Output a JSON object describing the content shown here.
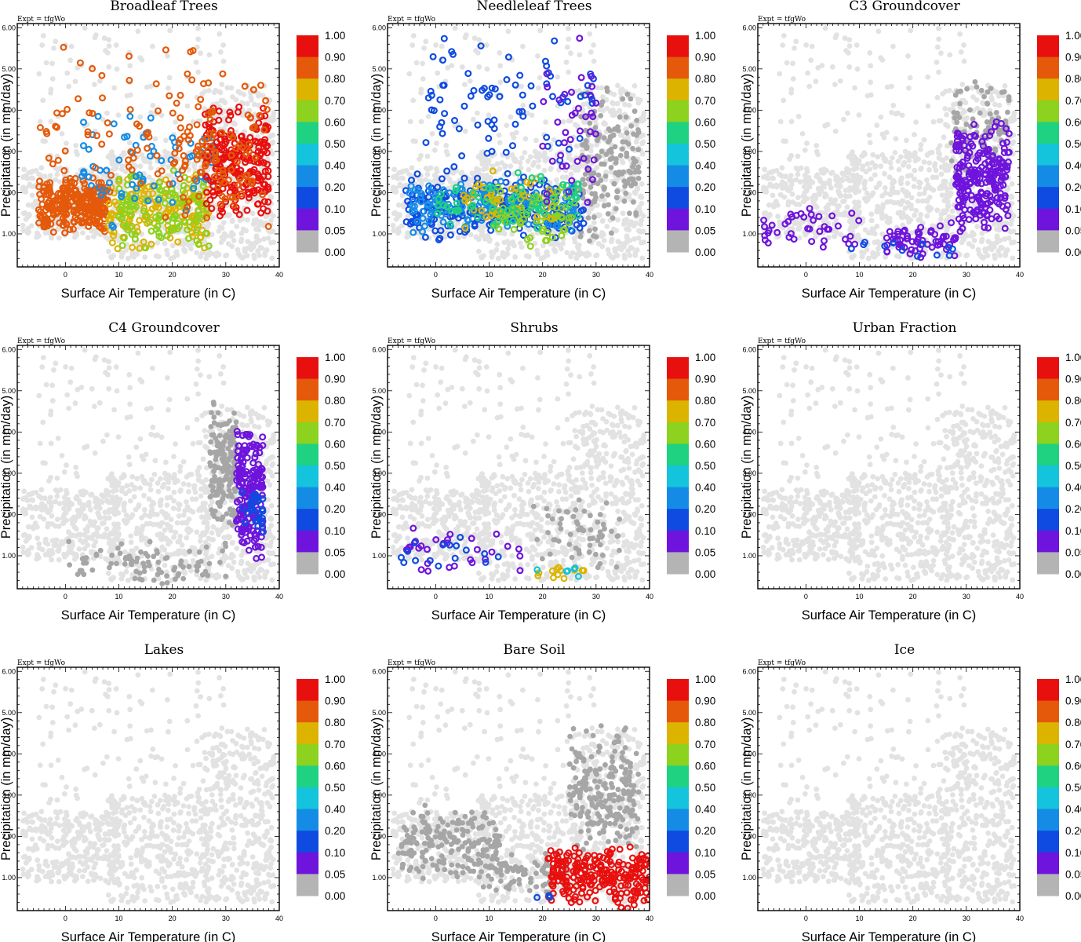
{
  "figure": {
    "expt_label": "Expt = tfgWo",
    "colorbar_labels": [
      "1.00",
      "0.90",
      "0.80",
      "0.70",
      "0.60",
      "0.50",
      "0.40",
      "0.20",
      "0.10",
      "0.05",
      "0.00"
    ],
    "colorbar_colors": [
      "#e8100e",
      "#e45a0a",
      "#dcb400",
      "#8cd21e",
      "#1ed282",
      "#14c3dc",
      "#148ce6",
      "#0f4be1",
      "#6e14dc",
      "#b4b4b4"
    ],
    "background_point_color": "#e2e2e2",
    "zero_point_color": "#a6a6a6"
  },
  "chart_data": [
    {
      "type": "scatter",
      "title": "Broadleaf Trees",
      "xlabel": "Surface Air Temperature (in C)",
      "ylabel": "Precipitation (in mm/day)",
      "xlim": [
        -9,
        40
      ],
      "ylim": [
        0.2,
        6.1
      ],
      "xticks": [
        0,
        10,
        20,
        30,
        40
      ],
      "yticks": [
        1.0,
        2.0,
        3.0,
        4.0,
        5.0,
        6.0
      ],
      "ytick_labels": [
        "1.00",
        "2.00",
        "3.00",
        "4.00",
        "5.00",
        "6.00"
      ],
      "clusters": [
        {
          "x": [
            -5,
            8
          ],
          "y": [
            1.0,
            2.4
          ],
          "color": "#e45a0a",
          "n": 260
        },
        {
          "x": [
            8,
            27
          ],
          "y": [
            0.5,
            2.5
          ],
          "color": "#dcb400",
          "n": 150
        },
        {
          "x": [
            10,
            27
          ],
          "y": [
            0.5,
            2.6
          ],
          "color": "#8cd21e",
          "n": 110
        },
        {
          "x": [
            3,
            28
          ],
          "y": [
            0.8,
            4.5
          ],
          "color": "#148ce6",
          "n": 70
        },
        {
          "x": [
            26,
            38
          ],
          "y": [
            1.2,
            4.3
          ],
          "color": "#e8100e",
          "n": 230
        },
        {
          "x": [
            20,
            38
          ],
          "y": [
            1.0,
            5.0
          ],
          "color": "#e45a0a",
          "n": 90
        },
        {
          "x": [
            -5,
            28
          ],
          "y": [
            1.0,
            5.8
          ],
          "color": "#e45a0a",
          "n": 90
        }
      ]
    },
    {
      "type": "scatter",
      "title": "Needleleaf Trees",
      "xlabel": "Surface Air Temperature (in C)",
      "ylabel": "Precipitation (in mm/day)",
      "xlim": [
        -9,
        40
      ],
      "ylim": [
        0.2,
        6.1
      ],
      "xticks": [
        0,
        10,
        20,
        30,
        40
      ],
      "yticks": [
        1.0,
        2.0,
        3.0,
        4.0,
        5.0,
        6.0
      ],
      "ytick_labels": [
        "1.00",
        "2.00",
        "3.00",
        "4.00",
        "5.00",
        "6.00"
      ],
      "clusters": [
        {
          "x": [
            27,
            38
          ],
          "y": [
            0.6,
            4.8
          ],
          "color": "#a6a6a6",
          "n": 170
        },
        {
          "x": [
            -6,
            28
          ],
          "y": [
            0.8,
            2.5
          ],
          "color": "#0f4be1",
          "n": 230
        },
        {
          "x": [
            -5,
            26
          ],
          "y": [
            1.0,
            2.3
          ],
          "color": "#148ce6",
          "n": 160
        },
        {
          "x": [
            10,
            26
          ],
          "y": [
            0.6,
            2.3
          ],
          "color": "#8cd21e",
          "n": 80
        },
        {
          "x": [
            5,
            22
          ],
          "y": [
            1.0,
            2.6
          ],
          "color": "#dcb400",
          "n": 40
        },
        {
          "x": [
            0,
            28
          ],
          "y": [
            1.0,
            2.5
          ],
          "color": "#1ed282",
          "n": 60
        },
        {
          "x": [
            -2,
            30
          ],
          "y": [
            2.2,
            5.9
          ],
          "color": "#0f4be1",
          "n": 80
        },
        {
          "x": [
            20,
            30
          ],
          "y": [
            1.0,
            6.0
          ],
          "color": "#6e14dc",
          "n": 40
        }
      ]
    },
    {
      "type": "scatter",
      "title": "C3 Groundcover",
      "xlabel": "Surface Air Temperature (in C)",
      "ylabel": "Precipitation (in mm/day)",
      "xlim": [
        -9,
        40
      ],
      "ylim": [
        0.2,
        6.1
      ],
      "xticks": [
        0,
        10,
        20,
        30,
        40
      ],
      "yticks": [
        1.0,
        2.0,
        3.0,
        4.0,
        5.0,
        6.0
      ],
      "ytick_labels": [
        "1.00",
        "2.00",
        "3.00",
        "4.00",
        "5.00",
        "6.00"
      ],
      "clusters": [
        {
          "x": [
            27,
            38
          ],
          "y": [
            2.2,
            4.8
          ],
          "color": "#a6a6a6",
          "n": 90
        },
        {
          "x": [
            28,
            38
          ],
          "y": [
            1.0,
            3.8
          ],
          "color": "#6e14dc",
          "n": 230
        },
        {
          "x": [
            -8,
            10
          ],
          "y": [
            0.5,
            1.8
          ],
          "color": "#6e14dc",
          "n": 40
        },
        {
          "x": [
            15,
            28
          ],
          "y": [
            0.4,
            1.3
          ],
          "color": "#6e14dc",
          "n": 60
        },
        {
          "x": [
            5,
            28
          ],
          "y": [
            0.3,
            0.9
          ],
          "color": "#0f4be1",
          "n": 12
        }
      ]
    },
    {
      "type": "scatter",
      "title": "C4 Groundcover",
      "xlabel": "Surface Air Temperature (in C)",
      "ylabel": "Precipitation (in mm/day)",
      "xlim": [
        -9,
        40
      ],
      "ylim": [
        0.2,
        6.1
      ],
      "xticks": [
        0,
        10,
        20,
        30,
        40
      ],
      "yticks": [
        1.0,
        2.0,
        3.0,
        4.0,
        5.0,
        6.0
      ],
      "ytick_labels": [
        "1.00",
        "2.00",
        "3.00",
        "4.00",
        "5.00",
        "6.00"
      ],
      "clusters": [
        {
          "x": [
            27,
            32
          ],
          "y": [
            1.5,
            4.8
          ],
          "color": "#a6a6a6",
          "n": 170
        },
        {
          "x": [
            0,
            30
          ],
          "y": [
            0.3,
            1.4
          ],
          "color": "#a6a6a6",
          "n": 90
        },
        {
          "x": [
            32,
            37
          ],
          "y": [
            0.8,
            4.4
          ],
          "color": "#6e14dc",
          "n": 190
        },
        {
          "x": [
            33,
            37
          ],
          "y": [
            1.5,
            2.8
          ],
          "color": "#0f4be1",
          "n": 30
        }
      ]
    },
    {
      "type": "scatter",
      "title": "Shrubs",
      "xlabel": "Surface Air Temperature (in C)",
      "ylabel": "Precipitation (in mm/day)",
      "xlim": [
        -9,
        40
      ],
      "ylim": [
        0.2,
        6.1
      ],
      "xticks": [
        0,
        10,
        20,
        30,
        40
      ],
      "yticks": [
        1.0,
        2.0,
        3.0,
        4.0,
        5.0,
        6.0
      ],
      "ytick_labels": [
        "1.00",
        "2.00",
        "3.00",
        "4.00",
        "5.00",
        "6.00"
      ],
      "clusters": [
        {
          "x": [
            18,
            35
          ],
          "y": [
            0.5,
            2.4
          ],
          "color": "#a6a6a6",
          "n": 60
        },
        {
          "x": [
            -8,
            16
          ],
          "y": [
            0.5,
            1.8
          ],
          "color": "#6e14dc",
          "n": 30
        },
        {
          "x": [
            -7,
            12
          ],
          "y": [
            0.5,
            1.7
          ],
          "color": "#0f4be1",
          "n": 16
        },
        {
          "x": [
            18,
            28
          ],
          "y": [
            0.4,
            0.8
          ],
          "color": "#dcb400",
          "n": 12
        },
        {
          "x": [
            8,
            28
          ],
          "y": [
            0.4,
            0.8
          ],
          "color": "#14c3dc",
          "n": 6
        }
      ]
    },
    {
      "type": "scatter",
      "title": "Urban Fraction",
      "xlabel": "Surface Air Temperature (in C)",
      "ylabel": "Precipitation (in mm/day)",
      "xlim": [
        -9,
        40
      ],
      "ylim": [
        0.2,
        6.1
      ],
      "xticks": [
        0,
        10,
        20,
        30,
        40
      ],
      "yticks": [
        1.0,
        2.0,
        3.0,
        4.0,
        5.0,
        6.0
      ],
      "ytick_labels": [
        "1.00",
        "2.00",
        "3.00",
        "4.00",
        "5.00",
        "6.00"
      ],
      "clusters": []
    },
    {
      "type": "scatter",
      "title": "Lakes",
      "xlabel": "Surface Air Temperature (in C)",
      "ylabel": "Precipitation (in mm/day)",
      "xlim": [
        -9,
        40
      ],
      "ylim": [
        0.2,
        6.1
      ],
      "xticks": [
        0,
        10,
        20,
        30,
        40
      ],
      "yticks": [
        1.0,
        2.0,
        3.0,
        4.0,
        5.0,
        6.0
      ],
      "ytick_labels": [
        "1.00",
        "2.00",
        "3.00",
        "4.00",
        "5.00",
        "6.00"
      ],
      "clusters": []
    },
    {
      "type": "scatter",
      "title": "Bare Soil",
      "xlabel": "Surface Air Temperature (in C)",
      "ylabel": "Precipitation (in mm/day)",
      "xlim": [
        -9,
        40
      ],
      "ylim": [
        0.2,
        6.1
      ],
      "xticks": [
        0,
        10,
        20,
        30,
        40
      ],
      "yticks": [
        1.0,
        2.0,
        3.0,
        4.0,
        5.0,
        6.0
      ],
      "ytick_labels": [
        "1.00",
        "2.00",
        "3.00",
        "4.00",
        "5.00",
        "6.00"
      ],
      "clusters": [
        {
          "x": [
            -7,
            12
          ],
          "y": [
            0.9,
            2.8
          ],
          "color": "#a6a6a6",
          "n": 200
        },
        {
          "x": [
            8,
            25
          ],
          "y": [
            0.6,
            1.6
          ],
          "color": "#a6a6a6",
          "n": 80
        },
        {
          "x": [
            25,
            38
          ],
          "y": [
            1.5,
            4.8
          ],
          "color": "#a6a6a6",
          "n": 220
        },
        {
          "x": [
            21,
            40
          ],
          "y": [
            0.2,
            1.9
          ],
          "color": "#e8100e",
          "n": 240
        },
        {
          "x": [
            18,
            22
          ],
          "y": [
            0.4,
            0.6
          ],
          "color": "#0f4be1",
          "n": 3
        }
      ]
    },
    {
      "type": "scatter",
      "title": "Ice",
      "xlabel": "Surface Air Temperature (in C)",
      "ylabel": "Precipitation (in mm/day)",
      "xlim": [
        -9,
        40
      ],
      "ylim": [
        0.2,
        6.1
      ],
      "xticks": [
        0,
        10,
        20,
        30,
        40
      ],
      "yticks": [
        1.0,
        2.0,
        3.0,
        4.0,
        5.0,
        6.0
      ],
      "ytick_labels": [
        "1.00",
        "2.00",
        "3.00",
        "4.00",
        "5.00",
        "6.00"
      ],
      "clusters": []
    }
  ]
}
